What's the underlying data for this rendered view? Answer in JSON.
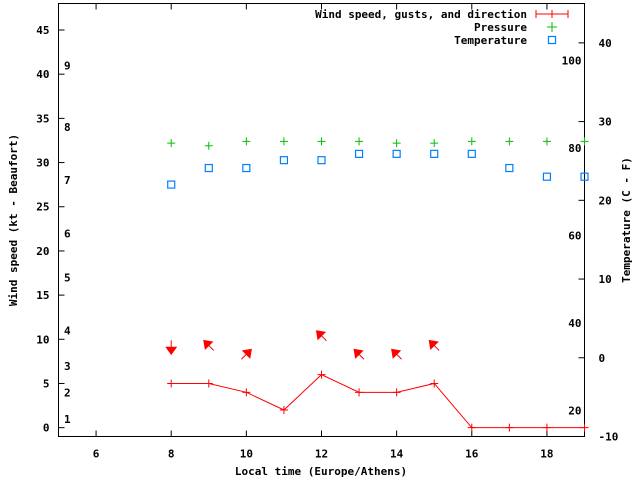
{
  "chart_data": {
    "type": "line",
    "xlabel": "Local time (Europe/Athens)",
    "ylabel": "Wind speed (kt - Beaufort)",
    "y2label": "Temperature (C - F)",
    "xlim": [
      5,
      19
    ],
    "ylim": [
      -1,
      48
    ],
    "y2lim": [
      -10,
      45
    ],
    "x_ticks": [
      6,
      8,
      10,
      12,
      14,
      16,
      18
    ],
    "y_ticks": [
      0,
      5,
      10,
      15,
      20,
      25,
      30,
      35,
      40,
      45
    ],
    "y2_ticks": [
      -10,
      0,
      10,
      20,
      30,
      40
    ],
    "fahrenheit_ticks": [
      20,
      40,
      60,
      80,
      100
    ],
    "beaufort_scale": [
      {
        "label": "1",
        "kt": 1
      },
      {
        "label": "2",
        "kt": 4
      },
      {
        "label": "3",
        "kt": 7
      },
      {
        "label": "4",
        "kt": 11
      },
      {
        "label": "5",
        "kt": 17
      },
      {
        "label": "6",
        "kt": 22
      },
      {
        "label": "7",
        "kt": 28
      },
      {
        "label": "8",
        "kt": 34
      },
      {
        "label": "9",
        "kt": 41
      }
    ],
    "legend_position": "top-right",
    "series": [
      {
        "name": "Wind speed, gusts, and direction",
        "axis": "y",
        "color": "#ff0000",
        "x": [
          8,
          9,
          10,
          11,
          12,
          13,
          14,
          15,
          16,
          17,
          18,
          19
        ],
        "values": [
          5,
          5,
          4,
          2,
          6,
          4,
          4,
          5,
          0,
          0,
          0,
          0
        ]
      },
      {
        "name": "Pressure",
        "axis": "y",
        "color": "#00c000",
        "x": [
          8,
          9,
          10,
          11,
          12,
          13,
          14,
          15,
          16,
          17,
          18,
          19
        ],
        "values": [
          32.2,
          31.9,
          32.4,
          32.4,
          32.4,
          32.4,
          32.2,
          32.2,
          32.4,
          32.4,
          32.4,
          32.4
        ]
      },
      {
        "name": "Temperature",
        "axis": "y2",
        "color": "#0080ff",
        "x": [
          8,
          9,
          10,
          11,
          12,
          13,
          14,
          15,
          16,
          17,
          18,
          19
        ],
        "values": [
          22.0,
          24.1,
          24.1,
          25.1,
          25.1,
          25.9,
          25.9,
          25.9,
          25.9,
          24.1,
          23.0,
          23.0
        ]
      }
    ],
    "wind_direction": {
      "x": [
        8,
        9,
        10,
        12,
        13,
        14,
        15
      ],
      "from_deg": [
        0,
        135,
        225,
        135,
        135,
        135,
        135
      ],
      "arrow_level_kt": [
        9.1,
        9.3,
        8.3,
        10.4,
        8.3,
        8.3,
        9.3
      ]
    }
  }
}
